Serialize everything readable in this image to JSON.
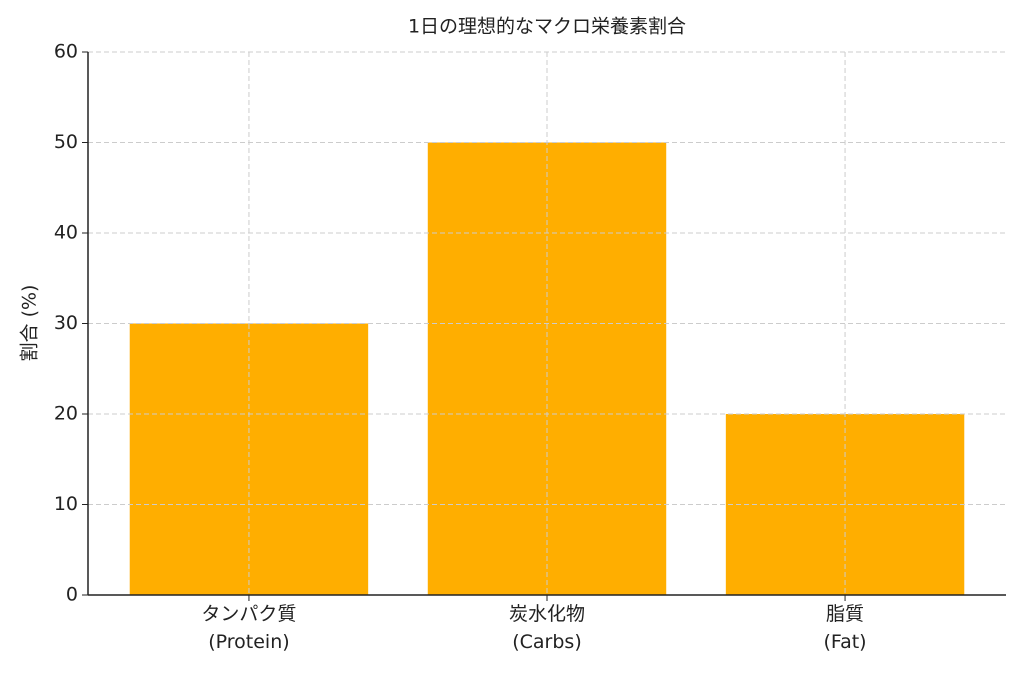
{
  "chart_data": {
    "type": "bar",
    "title": "1日の理想的なマクロ栄養素割合",
    "y_label": "割合 (%)",
    "categories": [
      "タンパク質\n(Protein)",
      "炭水化物\n(Carbs)",
      "脂質\n(Fat)"
    ],
    "values": [
      30,
      50,
      20
    ],
    "color": "#ffae00",
    "ylim": [
      0,
      60
    ],
    "yticks": [
      0,
      10,
      20,
      30,
      40,
      50,
      60
    ],
    "grid": true
  }
}
